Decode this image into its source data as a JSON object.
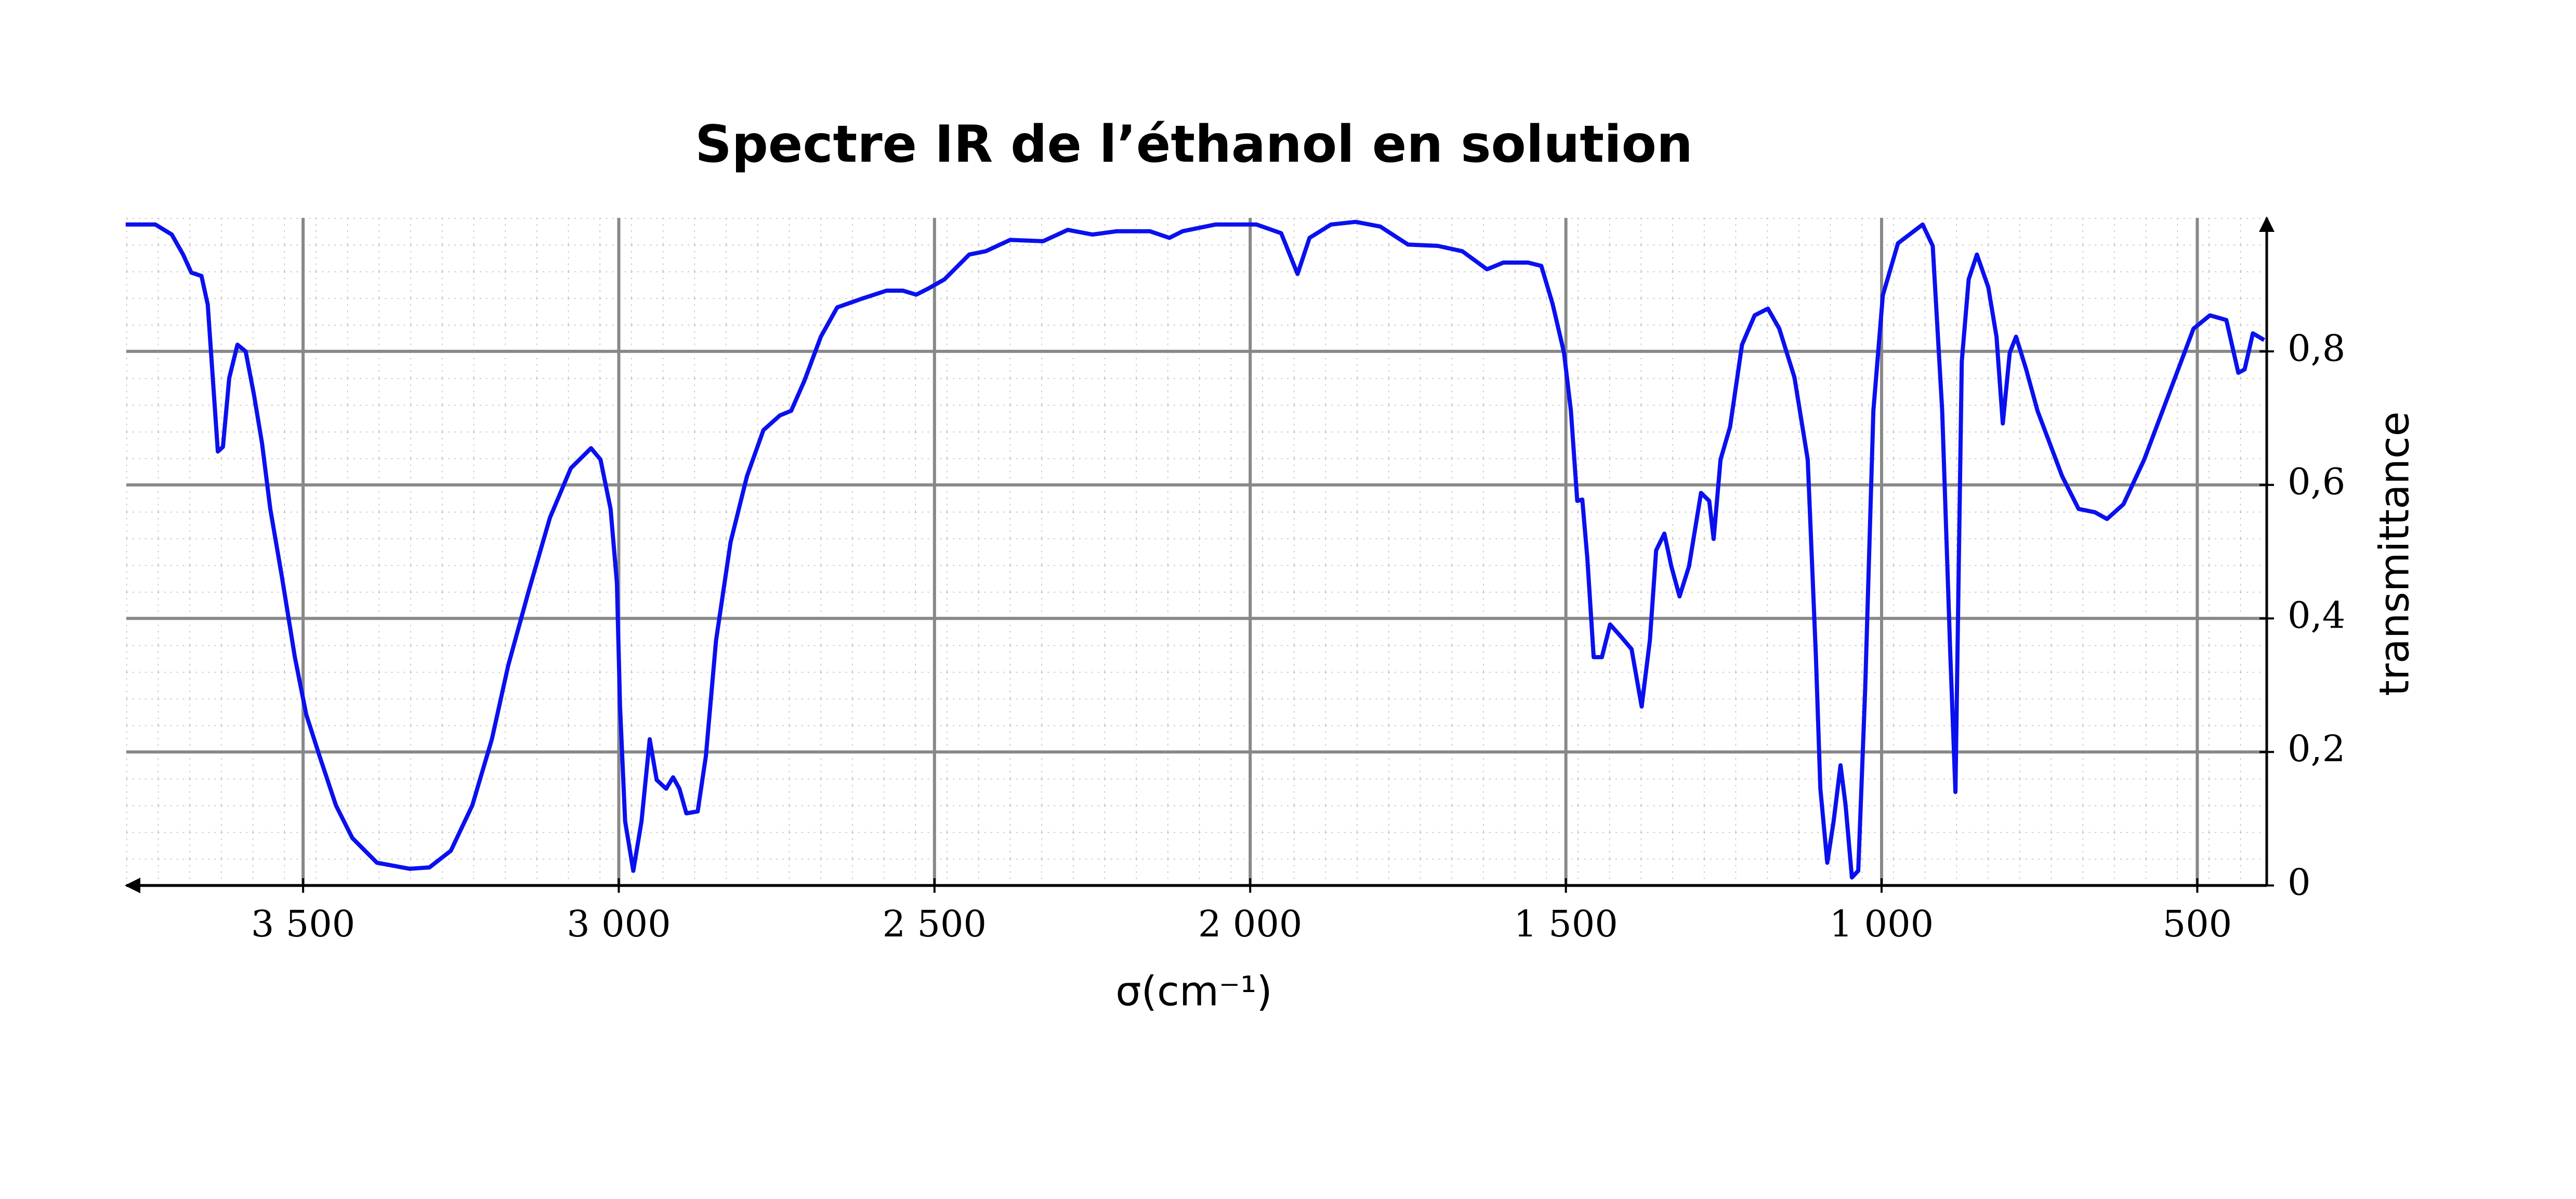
{
  "chart_data": {
    "type": "line",
    "title": "Spectre IR de l’éthanol en solution",
    "x_label": "σ(cm⁻¹)",
    "y_label": "transmittance",
    "xlim": [
      3780,
      390
    ],
    "ylim": [
      0,
      1
    ],
    "xticks": [
      {
        "value": 3500,
        "label": "3 500"
      },
      {
        "value": 3000,
        "label": "3 000"
      },
      {
        "value": 2500,
        "label": "2 500"
      },
      {
        "value": 2000,
        "label": "2 000"
      },
      {
        "value": 1500,
        "label": "1 500"
      },
      {
        "value": 1000,
        "label": "1 000"
      },
      500
    ],
    "yticks": [
      0,
      {
        "value": 0.2,
        "label": "0,2"
      },
      {
        "value": 0.4,
        "label": "0,4"
      },
      {
        "value": 0.6,
        "label": "0,6"
      },
      {
        "value": 0.8,
        "label": "0,8"
      }
    ],
    "grid": true,
    "x": [
      3781,
      3734,
      3708,
      3690,
      3677,
      3661,
      3651,
      3643,
      3635,
      3627,
      3617,
      3604,
      3591,
      3578,
      3565,
      3552,
      3534,
      3513,
      3495,
      3474,
      3448,
      3422,
      3383,
      3331,
      3300,
      3266,
      3232,
      3201,
      3175,
      3143,
      3109,
      3076,
      3044,
      3029,
      3013,
      3003,
      2998,
      2990,
      2977,
      2964,
      2951,
      2940,
      2925,
      2914,
      2904,
      2893,
      2875,
      2862,
      2846,
      2823,
      2797,
      2771,
      2745,
      2727,
      2706,
      2680,
      2654,
      2615,
      2576,
      2550,
      2529,
      2510,
      2484,
      2445,
      2419,
      2380,
      2328,
      2289,
      2250,
      2211,
      2159,
      2128,
      2107,
      2055,
      1990,
      1951,
      1925,
      1906,
      1872,
      1833,
      1794,
      1750,
      1703,
      1664,
      1625,
      1599,
      1560,
      1539,
      1521,
      1503,
      1492,
      1482,
      1474,
      1466,
      1456,
      1443,
      1430,
      1412,
      1396,
      1380,
      1367,
      1357,
      1344,
      1333,
      1320,
      1305,
      1286,
      1273,
      1266,
      1255,
      1240,
      1221,
      1201,
      1180,
      1162,
      1138,
      1117,
      1104,
      1097,
      1086,
      1076,
      1065,
      1057,
      1047,
      1037,
      1026,
      1013,
      998,
      974,
      935,
      919,
      904,
      891,
      883,
      873,
      862,
      849,
      831,
      818,
      808,
      797,
      787,
      771,
      753,
      714,
      688,
      662,
      643,
      617,
      584,
      545,
      506,
      480,
      454,
      435,
      425,
      412,
      394
    ],
    "series": [
      {
        "name": "transmittance",
        "color": "#0a10ee",
        "values": [
          0.99,
          0.99,
          0.975,
          0.945,
          0.918,
          0.913,
          0.87,
          0.76,
          0.65,
          0.657,
          0.76,
          0.81,
          0.8,
          0.736,
          0.662,
          0.564,
          0.465,
          0.342,
          0.256,
          0.194,
          0.12,
          0.071,
          0.034,
          0.025,
          0.027,
          0.052,
          0.12,
          0.219,
          0.33,
          0.44,
          0.551,
          0.625,
          0.655,
          0.638,
          0.564,
          0.453,
          0.268,
          0.096,
          0.022,
          0.096,
          0.219,
          0.158,
          0.145,
          0.162,
          0.145,
          0.108,
          0.111,
          0.194,
          0.367,
          0.514,
          0.613,
          0.682,
          0.704,
          0.711,
          0.756,
          0.822,
          0.866,
          0.879,
          0.891,
          0.891,
          0.885,
          0.894,
          0.908,
          0.945,
          0.95,
          0.967,
          0.965,
          0.982,
          0.975,
          0.98,
          0.98,
          0.97,
          0.98,
          0.99,
          0.99,
          0.977,
          0.916,
          0.97,
          0.99,
          0.994,
          0.987,
          0.96,
          0.958,
          0.95,
          0.923,
          0.933,
          0.933,
          0.928,
          0.871,
          0.798,
          0.711,
          0.576,
          0.578,
          0.49,
          0.342,
          0.342,
          0.391,
          0.372,
          0.354,
          0.268,
          0.367,
          0.502,
          0.527,
          0.478,
          0.433,
          0.478,
          0.588,
          0.576,
          0.519,
          0.638,
          0.687,
          0.81,
          0.854,
          0.864,
          0.834,
          0.761,
          0.638,
          0.342,
          0.145,
          0.034,
          0.096,
          0.18,
          0.12,
          0.012,
          0.022,
          0.293,
          0.711,
          0.884,
          0.962,
          0.99,
          0.958,
          0.711,
          0.342,
          0.14,
          0.785,
          0.908,
          0.945,
          0.896,
          0.822,
          0.692,
          0.798,
          0.822,
          0.773,
          0.711,
          0.613,
          0.564,
          0.559,
          0.549,
          0.571,
          0.638,
          0.736,
          0.834,
          0.854,
          0.847,
          0.768,
          0.773,
          0.827,
          0.817
        ]
      }
    ]
  }
}
